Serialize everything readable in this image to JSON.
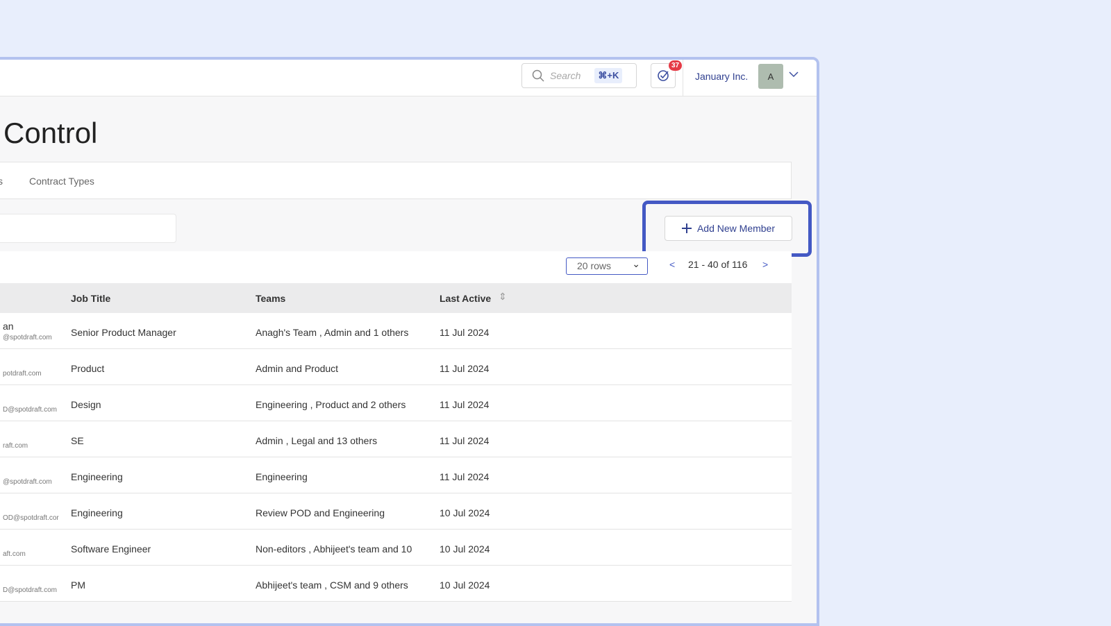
{
  "header": {
    "search_placeholder": "Search",
    "shortcut": "⌘+K",
    "tasks_count": "37",
    "org": "January Inc.",
    "avatar": "A"
  },
  "page_title": "Control",
  "tabs": [
    "s",
    "Contract Types"
  ],
  "add_button": "Add New Member",
  "pagination": {
    "rows": "20 rows",
    "range": "21 - 40 of 116"
  },
  "columns": [
    "Job Title",
    "Teams",
    "Last Active"
  ],
  "rows": [
    {
      "name": "an",
      "email": "@spotdraft.com",
      "job": "Senior Product Manager",
      "teams": "Anagh's Team , Admin and 1 others",
      "last": "11 Jul 2024"
    },
    {
      "name": "",
      "email": "potdraft.com",
      "job": "Product",
      "teams": "Admin and Product",
      "last": "11 Jul 2024"
    },
    {
      "name": "",
      "email": "D@spotdraft.com",
      "job": "Design",
      "teams": "Engineering , Product and 2 others",
      "last": "11 Jul 2024"
    },
    {
      "name": "",
      "email": "raft.com",
      "job": "SE",
      "teams": "Admin , Legal and 13 others",
      "last": "11 Jul 2024"
    },
    {
      "name": "",
      "email": "@spotdraft.com",
      "job": "Engineering",
      "teams": "Engineering",
      "last": "11 Jul 2024"
    },
    {
      "name": "",
      "email": "OD@spotdraft.cor",
      "job": "Engineering",
      "teams": "Review POD and Engineering",
      "last": "10 Jul 2024"
    },
    {
      "name": "",
      "email": "aft.com",
      "job": "Software Engineer",
      "teams": "Non-editors , Abhijeet's team and 10",
      "last": "10 Jul 2024"
    },
    {
      "name": "",
      "email": "D@spotdraft.com",
      "job": "PM",
      "teams": "Abhijeet's team , CSM and 9 others",
      "last": "10 Jul 2024"
    }
  ]
}
